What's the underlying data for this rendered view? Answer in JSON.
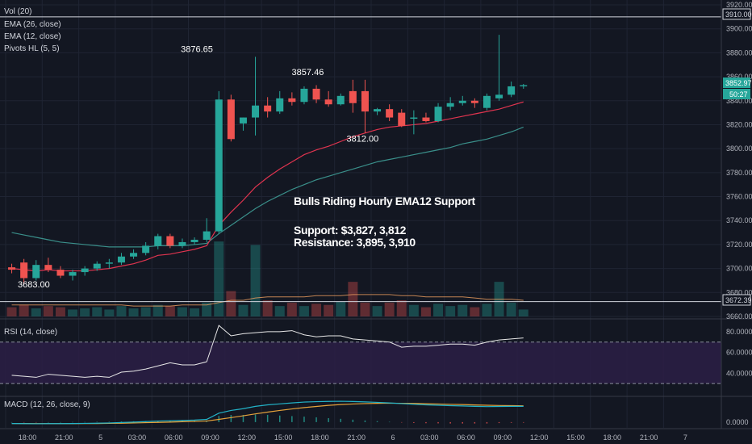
{
  "indicators": {
    "vol": "Vol (20)",
    "ema26": "EMA (26, close)",
    "ema12": "EMA (12, close)",
    "pivots": "Pivots HL (5, 5)",
    "rsi": "RSI (14, close)",
    "macd": "MACD (12, 26, close, 9)"
  },
  "annotation": {
    "title": "Bulls Riding Hourly EMA12 Support",
    "support": "Support: $3,827, 3,812",
    "resistance": "Resistance: 3,895, 3,910"
  },
  "price_labels": {
    "current": "3852.97",
    "countdown": "50:27",
    "line_3910": "3910.00",
    "line_3672": "3672.39"
  },
  "colors": {
    "background": "#131722",
    "grid": "#1f2433",
    "up": "#26a69a",
    "down": "#ef5350",
    "ema12": "#e0344f",
    "ema26": "#3a8f8a",
    "rsi_fill": "#2b1f45",
    "rsi_line": "#e8e8e8",
    "macd_line": "#22b3c8",
    "signal_line": "#e5a23b",
    "text": "#d1d4dc"
  },
  "chart_data": {
    "type": "candlestick",
    "price_axis": {
      "min": 3660,
      "max": 3920,
      "ticks": [
        3660,
        3680,
        3700,
        3720,
        3740,
        3760,
        3780,
        3800,
        3820,
        3840,
        3860,
        3880,
        3900,
        3920
      ]
    },
    "rsi_axis": {
      "min": 20,
      "max": 90,
      "ticks": [
        "40.0000",
        "60.0000",
        "80.0000"
      ],
      "tick_values": [
        40,
        60,
        80
      ],
      "bands": [
        30,
        70
      ]
    },
    "macd_axis": {
      "ticks": [
        "0.0000"
      ]
    },
    "time_ticks": [
      "18:00",
      "21:00",
      "5",
      "03:00",
      "06:00",
      "09:00",
      "12:00",
      "15:00",
      "18:00",
      "21:00",
      "6",
      "03:00",
      "06:00",
      "09:00",
      "12:00",
      "15:00",
      "18:00",
      "21:00",
      "7"
    ],
    "time_tick_hours": [
      0,
      3,
      6,
      9,
      12,
      15,
      18,
      21,
      24,
      27,
      30,
      33,
      36,
      39,
      42,
      45,
      48,
      51,
      54
    ],
    "horizontal_lines": [
      3910,
      3672.39
    ],
    "pivot_labels": [
      {
        "text": "3876.65",
        "hour": 15.3,
        "value": 3876.65
      },
      {
        "text": "3857.46",
        "hour": 24.4,
        "value": 3857.46
      },
      {
        "text": "3812.00",
        "hour": 28.9,
        "value": 3812.0
      },
      {
        "text": "3683.00",
        "hour": 0.0,
        "value": 3683.0
      }
    ],
    "candles": [
      {
        "o": 3701,
        "h": 3704,
        "l": 3696,
        "c": 3699
      },
      {
        "o": 3705,
        "h": 3708,
        "l": 3687,
        "c": 3692
      },
      {
        "o": 3692,
        "h": 3707,
        "l": 3690,
        "c": 3703
      },
      {
        "o": 3703,
        "h": 3709,
        "l": 3697,
        "c": 3699
      },
      {
        "o": 3699,
        "h": 3702,
        "l": 3692,
        "c": 3694
      },
      {
        "o": 3694,
        "h": 3699,
        "l": 3690,
        "c": 3697
      },
      {
        "o": 3697,
        "h": 3702,
        "l": 3694,
        "c": 3700
      },
      {
        "o": 3700,
        "h": 3706,
        "l": 3698,
        "c": 3704
      },
      {
        "o": 3704,
        "h": 3708,
        "l": 3700,
        "c": 3705
      },
      {
        "o": 3705,
        "h": 3713,
        "l": 3703,
        "c": 3710
      },
      {
        "o": 3710,
        "h": 3716,
        "l": 3708,
        "c": 3713
      },
      {
        "o": 3713,
        "h": 3722,
        "l": 3711,
        "c": 3719
      },
      {
        "o": 3719,
        "h": 3729,
        "l": 3716,
        "c": 3727
      },
      {
        "o": 3727,
        "h": 3729,
        "l": 3717,
        "c": 3719
      },
      {
        "o": 3719,
        "h": 3725,
        "l": 3717,
        "c": 3722
      },
      {
        "o": 3722,
        "h": 3726,
        "l": 3720,
        "c": 3724
      },
      {
        "o": 3724,
        "h": 3742,
        "l": 3722,
        "c": 3731
      },
      {
        "o": 3731,
        "h": 3848,
        "l": 3729,
        "c": 3841
      },
      {
        "o": 3841,
        "h": 3845,
        "l": 3806,
        "c": 3808
      },
      {
        "o": 3821,
        "h": 3826,
        "l": 3815,
        "c": 3826
      },
      {
        "o": 3826,
        "h": 3876.65,
        "l": 3811,
        "c": 3836
      },
      {
        "o": 3836,
        "h": 3843,
        "l": 3826,
        "c": 3831
      },
      {
        "o": 3831,
        "h": 3848,
        "l": 3829,
        "c": 3842
      },
      {
        "o": 3842,
        "h": 3847,
        "l": 3836,
        "c": 3839
      },
      {
        "o": 3839,
        "h": 3852,
        "l": 3837,
        "c": 3850
      },
      {
        "o": 3850,
        "h": 3853,
        "l": 3838,
        "c": 3841
      },
      {
        "o": 3841,
        "h": 3848,
        "l": 3835,
        "c": 3837
      },
      {
        "o": 3837,
        "h": 3846,
        "l": 3836,
        "c": 3844
      },
      {
        "o": 3848,
        "h": 3857.46,
        "l": 3830,
        "c": 3838
      },
      {
        "o": 3848,
        "h": 3857.46,
        "l": 3813,
        "c": 3831
      },
      {
        "o": 3831,
        "h": 3834,
        "l": 3828,
        "c": 3833
      },
      {
        "o": 3833,
        "h": 3837,
        "l": 3823,
        "c": 3826
      },
      {
        "o": 3830,
        "h": 3833,
        "l": 3818,
        "c": 3819
      },
      {
        "o": 3825,
        "h": 3832,
        "l": 3812,
        "c": 3826
      },
      {
        "o": 3826,
        "h": 3830,
        "l": 3822,
        "c": 3823
      },
      {
        "o": 3823,
        "h": 3838,
        "l": 3822,
        "c": 3835
      },
      {
        "o": 3835,
        "h": 3843,
        "l": 3832,
        "c": 3838
      },
      {
        "o": 3838,
        "h": 3844,
        "l": 3836,
        "c": 3840
      },
      {
        "o": 3840,
        "h": 3842,
        "l": 3834,
        "c": 3838
      },
      {
        "o": 3834,
        "h": 3846,
        "l": 3832,
        "c": 3844
      },
      {
        "o": 3842,
        "h": 3895,
        "l": 3840,
        "c": 3845
      },
      {
        "o": 3845,
        "h": 3856,
        "l": 3843,
        "c": 3852
      },
      {
        "o": 3852,
        "h": 3854,
        "l": 3850,
        "c": 3852.97
      }
    ],
    "ema12": [
      3700,
      3699,
      3698,
      3699,
      3698,
      3698,
      3698,
      3699,
      3700,
      3702,
      3704,
      3707,
      3711,
      3712,
      3714,
      3716,
      3719,
      3736,
      3747,
      3757,
      3768,
      3776,
      3783,
      3789,
      3795,
      3799,
      3802,
      3806,
      3810,
      3813,
      3816,
      3818,
      3819,
      3820,
      3821,
      3823,
      3825,
      3827,
      3829,
      3831,
      3833,
      3836,
      3839
    ],
    "ema26": [
      3730,
      3728,
      3726,
      3724,
      3722,
      3721,
      3720,
      3719,
      3718,
      3718,
      3718,
      3718,
      3719,
      3719,
      3719,
      3720,
      3721,
      3729,
      3736,
      3743,
      3750,
      3756,
      3761,
      3766,
      3770,
      3774,
      3777,
      3780,
      3783,
      3786,
      3789,
      3791,
      3793,
      3795,
      3797,
      3799,
      3801,
      3804,
      3806,
      3808,
      3811,
      3814,
      3818
    ],
    "volume": [
      8,
      10,
      7,
      9,
      8,
      6,
      7,
      8,
      6,
      9,
      7,
      8,
      10,
      9,
      8,
      7,
      12,
      65,
      22,
      10,
      62,
      14,
      9,
      12,
      9,
      11,
      10,
      13,
      30,
      12,
      9,
      12,
      14,
      10,
      8,
      11,
      9,
      10,
      8,
      11,
      30,
      12,
      6
    ],
    "volume_ma": [
      10,
      10,
      10,
      10,
      10,
      10,
      10,
      10,
      10,
      10,
      9,
      9,
      9,
      9,
      10,
      10,
      10,
      12,
      14,
      14,
      16,
      17,
      17,
      17,
      17,
      18,
      18,
      18,
      19,
      19,
      19,
      19,
      18,
      18,
      17,
      17,
      17,
      17,
      16,
      15,
      15,
      15,
      14
    ],
    "rsi": [
      38,
      37,
      36,
      39,
      38,
      37,
      36,
      37,
      36,
      41,
      42,
      44,
      47,
      50,
      48,
      48,
      51,
      86,
      76,
      78,
      79,
      80,
      80,
      81,
      77,
      75,
      76,
      76,
      73,
      72,
      71,
      70,
      65,
      66,
      66,
      67,
      68,
      68,
      67,
      70,
      72,
      73,
      74
    ],
    "macd": [
      -1.0,
      -1.1,
      -1.2,
      -1.1,
      -1.1,
      -1.0,
      -0.9,
      -0.8,
      -0.6,
      -0.3,
      0.0,
      0.4,
      0.8,
      1.0,
      1.2,
      1.5,
      2.0,
      6.5,
      8.5,
      9.8,
      11.5,
      12.6,
      13.3,
      14.0,
      14.6,
      14.9,
      15.1,
      15.2,
      15.0,
      14.7,
      14.4,
      14.0,
      13.5,
      13.0,
      12.6,
      12.3,
      12.0,
      11.8,
      11.5,
      11.3,
      11.4,
      11.5,
      11.5
    ],
    "signal": [
      -1.0,
      -1.0,
      -1.1,
      -1.1,
      -1.1,
      -1.1,
      -1.0,
      -1.0,
      -0.9,
      -0.8,
      -0.6,
      -0.4,
      -0.2,
      0.0,
      0.3,
      0.5,
      0.8,
      2.0,
      3.3,
      4.6,
      6.0,
      7.3,
      8.5,
      9.6,
      10.6,
      11.4,
      12.2,
      12.8,
      13.2,
      13.5,
      13.7,
      13.8,
      13.7,
      13.6,
      13.4,
      13.2,
      13.0,
      12.8,
      12.5,
      12.3,
      12.1,
      12.0,
      11.9
    ]
  }
}
